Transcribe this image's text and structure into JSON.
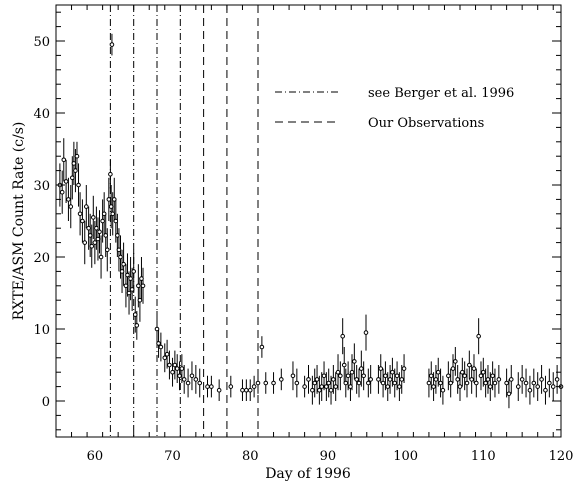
{
  "chart_data": {
    "type": "scatter",
    "xlabel": "Day of 1996",
    "ylabel": "RXTE/ASM Count Rate (c/s)",
    "xlim": [
      55,
      120
    ],
    "ylim": [
      -5,
      55
    ],
    "xticks": [
      60,
      70,
      80,
      90,
      100,
      110,
      120
    ],
    "yticks": [
      0,
      10,
      20,
      30,
      40,
      50
    ],
    "grid": false,
    "legend_position": "top-right",
    "legend": [
      {
        "label": "see Berger et al. 1996",
        "style": "dash-dot"
      },
      {
        "label": "Our Observations",
        "style": "dashed"
      }
    ],
    "vertical_lines": [
      {
        "x": 62.0,
        "style": "dash-dot"
      },
      {
        "x": 65.0,
        "style": "dash-dot"
      },
      {
        "x": 68.0,
        "style": "dash-dot"
      },
      {
        "x": 71.0,
        "style": "dash-dot"
      },
      {
        "x": 74.0,
        "style": "dashed"
      },
      {
        "x": 77.0,
        "style": "dashed"
      },
      {
        "x": 81.0,
        "style": "dashed"
      }
    ],
    "series": [
      {
        "points": [
          [
            55.5,
            30.0,
            3
          ],
          [
            55.8,
            29.0,
            3
          ],
          [
            56.0,
            33.5,
            3
          ],
          [
            56.3,
            30.5,
            3
          ],
          [
            56.6,
            28.0,
            3
          ],
          [
            56.9,
            27.0,
            3
          ],
          [
            57.1,
            31.0,
            3
          ],
          [
            57.3,
            33.0,
            3
          ],
          [
            57.5,
            32.0,
            3
          ],
          [
            57.7,
            34.0,
            2
          ],
          [
            57.9,
            30.0,
            3
          ],
          [
            58.1,
            26.0,
            3
          ],
          [
            58.4,
            25.0,
            3
          ],
          [
            58.7,
            22.0,
            3
          ],
          [
            58.9,
            27.0,
            3
          ],
          [
            59.2,
            24.0,
            3
          ],
          [
            59.4,
            23.0,
            3
          ],
          [
            59.6,
            21.5,
            3
          ],
          [
            59.8,
            25.5,
            3
          ],
          [
            60.0,
            22.0,
            3
          ],
          [
            60.2,
            24.0,
            3
          ],
          [
            60.4,
            22.5,
            3
          ],
          [
            60.6,
            23.5,
            3
          ],
          [
            60.8,
            20.0,
            3
          ],
          [
            61.0,
            25.0,
            3
          ],
          [
            61.2,
            26.0,
            3
          ],
          [
            61.4,
            23.0,
            3
          ],
          [
            61.6,
            21.0,
            3
          ],
          [
            61.8,
            28.0,
            3
          ],
          [
            62.0,
            31.5,
            2
          ],
          [
            62.1,
            27.0,
            3
          ],
          [
            62.2,
            49.5,
            1.5
          ],
          [
            62.3,
            26.0,
            3
          ],
          [
            62.5,
            28.0,
            3
          ],
          [
            62.7,
            25.0,
            3
          ],
          [
            62.9,
            23.0,
            3
          ],
          [
            63.1,
            21.0,
            3
          ],
          [
            63.3,
            20.0,
            3
          ],
          [
            63.5,
            18.0,
            3
          ],
          [
            63.7,
            19.0,
            3
          ],
          [
            64.0,
            16.0,
            3
          ],
          [
            64.2,
            17.5,
            3
          ],
          [
            64.4,
            15.0,
            3
          ],
          [
            64.6,
            17.0,
            3
          ],
          [
            64.8,
            15.5,
            3
          ],
          [
            65.0,
            18.0,
            3
          ],
          [
            65.2,
            12.0,
            2.5
          ],
          [
            65.4,
            10.5,
            2
          ],
          [
            65.6,
            16.0,
            3
          ],
          [
            65.8,
            14.0,
            3
          ],
          [
            66.0,
            17.0,
            3
          ],
          [
            66.2,
            16.0,
            2.5
          ],
          [
            68.0,
            10.0,
            2.5
          ],
          [
            68.2,
            8.0,
            2
          ],
          [
            68.5,
            7.5,
            2
          ],
          [
            69.0,
            6.0,
            2
          ],
          [
            69.3,
            6.5,
            2
          ],
          [
            69.6,
            5.0,
            2
          ],
          [
            70.0,
            4.0,
            2
          ],
          [
            70.3,
            5.0,
            2
          ],
          [
            70.6,
            4.5,
            2
          ],
          [
            70.9,
            3.5,
            2
          ],
          [
            71.2,
            4.5,
            2
          ],
          [
            71.5,
            3.0,
            2
          ],
          [
            72.0,
            2.5,
            2
          ],
          [
            72.5,
            3.5,
            2
          ],
          [
            73.0,
            3.0,
            2
          ],
          [
            73.5,
            2.5,
            2
          ],
          [
            74.5,
            2.0,
            1.5
          ],
          [
            75.0,
            2.0,
            1.5
          ],
          [
            76.0,
            1.5,
            1.5
          ],
          [
            77.5,
            2.0,
            1.5
          ],
          [
            79.0,
            1.5,
            1.5
          ],
          [
            79.5,
            1.5,
            1.5
          ],
          [
            80.0,
            1.5,
            1.5
          ],
          [
            80.5,
            2.0,
            1.5
          ],
          [
            81.0,
            2.5,
            1.5
          ],
          [
            81.5,
            7.5,
            1.5
          ],
          [
            82.0,
            2.5,
            1.5
          ],
          [
            83.0,
            2.5,
            1.5
          ],
          [
            84.0,
            3.0,
            1.5
          ],
          [
            85.5,
            3.5,
            2
          ],
          [
            86.0,
            2.5,
            2
          ],
          [
            87.0,
            2.0,
            1.5
          ],
          [
            87.5,
            3.0,
            2
          ],
          [
            88.0,
            1.5,
            2
          ],
          [
            88.3,
            2.5,
            2
          ],
          [
            88.6,
            3.0,
            2
          ],
          [
            88.9,
            1.5,
            2
          ],
          [
            89.2,
            2.0,
            2
          ],
          [
            89.5,
            3.5,
            2
          ],
          [
            89.8,
            2.0,
            2
          ],
          [
            90.1,
            2.5,
            2
          ],
          [
            90.4,
            1.5,
            2
          ],
          [
            90.7,
            3.0,
            2
          ],
          [
            91.0,
            2.0,
            2
          ],
          [
            91.3,
            4.0,
            2.5
          ],
          [
            91.6,
            3.5,
            2
          ],
          [
            91.9,
            9.0,
            2.5
          ],
          [
            92.1,
            5.0,
            2.5
          ],
          [
            92.3,
            2.5,
            2
          ],
          [
            92.6,
            3.5,
            2
          ],
          [
            92.9,
            2.0,
            2
          ],
          [
            93.1,
            4.0,
            2.5
          ],
          [
            93.4,
            5.5,
            2.5
          ],
          [
            93.7,
            3.0,
            2
          ],
          [
            94.0,
            2.5,
            2
          ],
          [
            94.3,
            4.5,
            2.5
          ],
          [
            94.6,
            3.5,
            2
          ],
          [
            94.9,
            9.5,
            2.5
          ],
          [
            95.2,
            2.5,
            2
          ],
          [
            95.5,
            3.0,
            2
          ],
          [
            96.5,
            3.0,
            2
          ],
          [
            96.8,
            4.5,
            2
          ],
          [
            97.1,
            2.5,
            2
          ],
          [
            97.4,
            3.5,
            2
          ],
          [
            97.7,
            2.0,
            2
          ],
          [
            98.0,
            3.0,
            2
          ],
          [
            98.3,
            4.0,
            2
          ],
          [
            98.6,
            2.5,
            2
          ],
          [
            98.9,
            3.5,
            2
          ],
          [
            99.2,
            2.0,
            2
          ],
          [
            99.5,
            3.0,
            2
          ],
          [
            99.8,
            4.5,
            2
          ],
          [
            103.0,
            2.5,
            2
          ],
          [
            103.3,
            3.5,
            2
          ],
          [
            103.6,
            2.0,
            2
          ],
          [
            103.9,
            3.0,
            2
          ],
          [
            104.2,
            4.0,
            2
          ],
          [
            104.5,
            2.5,
            2
          ],
          [
            104.8,
            1.5,
            2
          ],
          [
            105.5,
            3.5,
            2
          ],
          [
            105.8,
            2.5,
            2
          ],
          [
            106.1,
            4.5,
            2
          ],
          [
            106.4,
            5.5,
            2
          ],
          [
            106.7,
            3.0,
            2
          ],
          [
            107.0,
            2.0,
            2
          ],
          [
            107.3,
            4.0,
            2
          ],
          [
            107.6,
            3.5,
            2
          ],
          [
            107.9,
            2.5,
            2
          ],
          [
            108.2,
            5.0,
            2
          ],
          [
            108.5,
            3.0,
            2
          ],
          [
            108.8,
            4.5,
            2
          ],
          [
            109.1,
            2.5,
            2
          ],
          [
            109.4,
            9.0,
            2.5
          ],
          [
            109.7,
            3.5,
            2
          ],
          [
            110.0,
            4.0,
            2
          ],
          [
            110.3,
            2.5,
            2
          ],
          [
            110.6,
            3.0,
            2
          ],
          [
            110.9,
            2.0,
            2
          ],
          [
            111.2,
            3.5,
            2
          ],
          [
            111.5,
            2.5,
            2
          ],
          [
            112.0,
            3.0,
            2
          ],
          [
            113.0,
            2.5,
            2
          ],
          [
            113.3,
            1.0,
            2
          ],
          [
            113.6,
            3.0,
            2
          ],
          [
            114.5,
            2.0,
            2
          ],
          [
            115.0,
            3.0,
            2
          ],
          [
            115.5,
            2.5,
            2
          ],
          [
            116.0,
            1.5,
            2
          ],
          [
            116.5,
            2.5,
            2
          ],
          [
            117.0,
            2.0,
            2
          ],
          [
            117.5,
            3.0,
            2
          ],
          [
            118.0,
            1.5,
            2
          ],
          [
            118.5,
            2.5,
            2
          ],
          [
            119.0,
            2.0,
            2
          ],
          [
            119.5,
            3.0,
            2
          ],
          [
            120.0,
            2.0,
            2
          ]
        ]
      }
    ]
  }
}
